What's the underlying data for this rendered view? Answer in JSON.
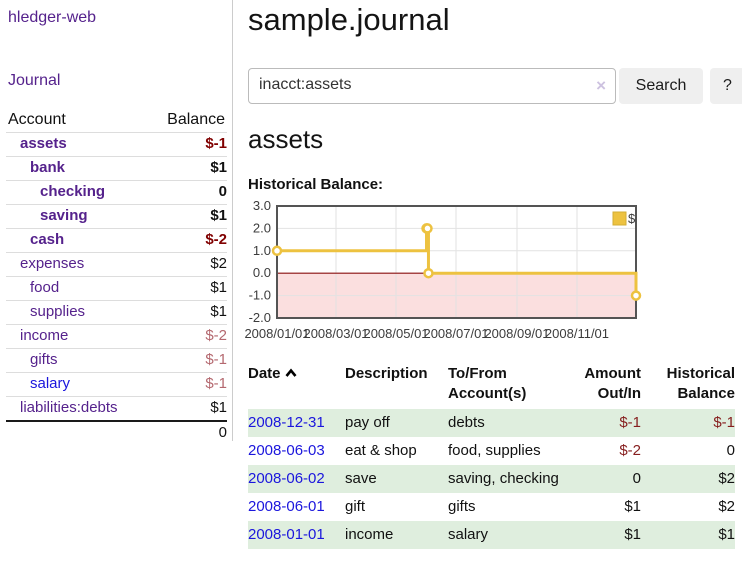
{
  "app": {
    "brand": "hledger-web",
    "nav_journal": "Journal"
  },
  "colors": {
    "link_purple": "#55228c",
    "link_blue": "#1b16dd",
    "negative_strong": "#800000",
    "negative_muted": "#b4686f",
    "negative_table": "#861e1e",
    "row_shade_green": "#dfeede",
    "chart_gold": "#edc240"
  },
  "sidebar": {
    "accounts_table": {
      "headers": {
        "account": "Account",
        "balance": "Balance"
      },
      "rows": [
        {
          "name": "assets",
          "depth": 0,
          "balance": "$-1",
          "bold": true,
          "negative": "strong"
        },
        {
          "name": "bank",
          "depth": 1,
          "balance": "$1",
          "bold": true
        },
        {
          "name": "checking",
          "depth": 2,
          "balance": "0",
          "bold": true
        },
        {
          "name": "saving",
          "depth": 2,
          "balance": "$1",
          "bold": true
        },
        {
          "name": "cash",
          "depth": 1,
          "balance": "$-2",
          "bold": true,
          "negative": "strong"
        },
        {
          "name": "expenses",
          "depth": 0,
          "balance": "$2"
        },
        {
          "name": "food",
          "depth": 1,
          "balance": "$1"
        },
        {
          "name": "supplies",
          "depth": 1,
          "balance": "$1"
        },
        {
          "name": "income",
          "depth": 0,
          "balance": "$-2",
          "negative": "muted"
        },
        {
          "name": "gifts",
          "depth": 1,
          "balance": "$-1",
          "negative": "muted"
        },
        {
          "name": "salary",
          "depth": 1,
          "balance": "$-1",
          "negative": "muted",
          "link_style": "unvisited"
        },
        {
          "name": "liabilities:debts",
          "depth": 0,
          "balance": "$1"
        }
      ],
      "total": "0"
    }
  },
  "header": {
    "title": "sample.journal"
  },
  "search": {
    "value": "inacct:assets",
    "clear_label": "×",
    "button": "Search",
    "help_button": "?"
  },
  "account_page": {
    "heading": "assets",
    "chart_label": "Historical Balance:"
  },
  "chart_data": {
    "type": "line",
    "title": "Historical Balance",
    "step": true,
    "series": [
      {
        "name": "$",
        "color": "#edc240",
        "points": [
          [
            "2008-01-01",
            1
          ],
          [
            "2008-06-01",
            2
          ],
          [
            "2008-06-02",
            2
          ],
          [
            "2008-06-03",
            0
          ],
          [
            "2008-12-31",
            -1
          ]
        ]
      }
    ],
    "x_range": [
      "2008-01-01",
      "2008-12-31"
    ],
    "x_ticks": [
      "2008/01/01",
      "2008/03/01",
      "2008/05/01",
      "2008/07/01",
      "2008/09/01",
      "2008/11/01"
    ],
    "y_ticks": [
      "3.0",
      "2.0",
      "1.0",
      "0.0",
      "-1.0",
      "-2.0"
    ],
    "ylim": [
      -2,
      3
    ],
    "grid": true,
    "legend": {
      "label": "$",
      "position": "top-right"
    },
    "negative_region_color": "#fbdfdf",
    "zero_line_color": "#8e1010",
    "grid_color": "#e2e2e2",
    "border_color": "#545454"
  },
  "register": {
    "columns": [
      {
        "label": "Date",
        "sorted": "asc"
      },
      {
        "label": "Description"
      },
      {
        "label": "To/From Account(s)"
      },
      {
        "label": "Amount Out/In"
      },
      {
        "label": "Historical Balance"
      }
    ],
    "rows": [
      {
        "date": "2008-12-31",
        "description": "pay off",
        "accounts": "debts",
        "amount": "$-1",
        "balance": "$-1",
        "amount_negative": true,
        "balance_negative": true,
        "shade": true
      },
      {
        "date": "2008-06-03",
        "description": "eat & shop",
        "accounts": "food, supplies",
        "amount": "$-2",
        "balance": "0",
        "amount_negative": true
      },
      {
        "date": "2008-06-02",
        "description": "save",
        "accounts": "saving, checking",
        "amount": "0",
        "balance": "$2",
        "shade": true
      },
      {
        "date": "2008-06-01",
        "description": "gift",
        "accounts": "gifts",
        "amount": "$1",
        "balance": "$2"
      },
      {
        "date": "2008-01-01",
        "description": "income",
        "accounts": "salary",
        "amount": "$1",
        "balance": "$1",
        "shade": true
      }
    ]
  }
}
